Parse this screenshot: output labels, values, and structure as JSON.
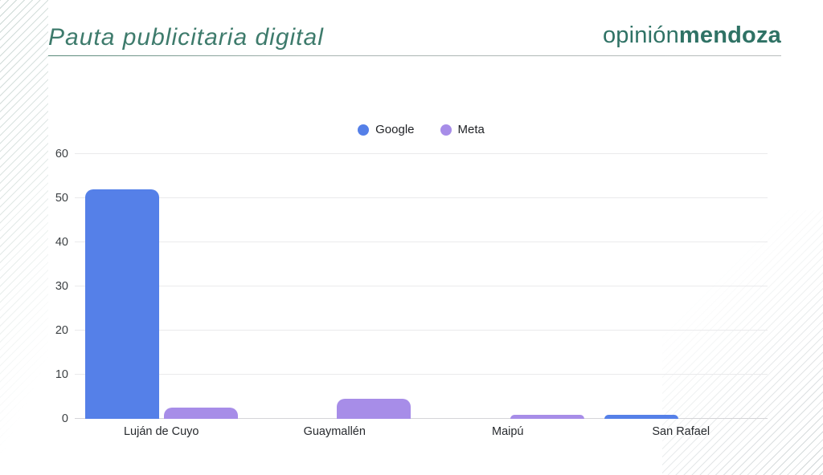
{
  "header": {
    "title": "Pauta publicitaria digital",
    "brand_regular": "opinión",
    "brand_bold": "mendoza"
  },
  "chart_data": {
    "type": "bar",
    "title": "Pauta publicitaria digital",
    "categories": [
      "Luján de Cuyo",
      "Guaymallén",
      "Maipú",
      "San Rafael"
    ],
    "series": [
      {
        "name": "Google",
        "color": "#5580E8",
        "values": [
          52,
          0,
          0,
          1
        ]
      },
      {
        "name": "Meta",
        "color": "#A78DE8",
        "values": [
          2.5,
          4.5,
          1,
          0
        ]
      }
    ],
    "xlabel": "",
    "ylabel": "",
    "ylim": [
      0,
      60
    ],
    "yticks": [
      0,
      10,
      20,
      30,
      40,
      50,
      60
    ],
    "grid": true,
    "legend_position": "top-center"
  },
  "colors": {
    "title_teal": "#3E7B6C",
    "brand_teal": "#2F7265",
    "google_blue": "#5580E8",
    "meta_purple": "#A78DE8",
    "gridline": "#EAEAEC",
    "axis_text": "#3C4043"
  }
}
